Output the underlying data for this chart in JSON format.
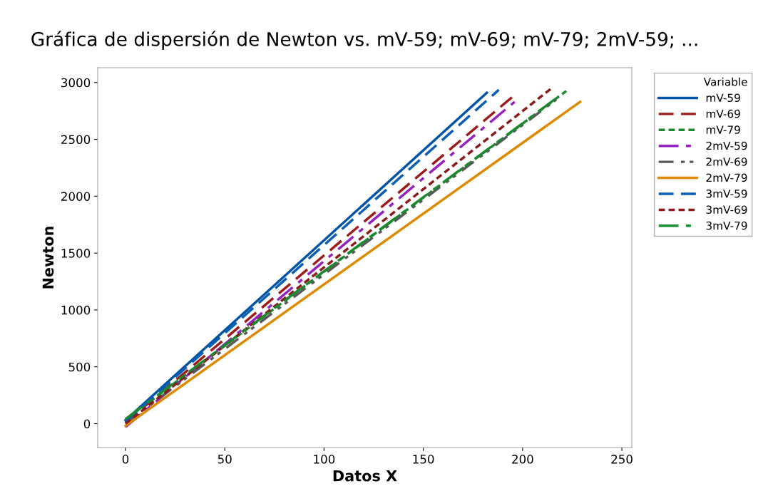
{
  "chart_data": {
    "type": "line",
    "title": "Gráfica de dispersión de Newton vs. mV-59; mV-69; mV-79; 2mV-59; ...",
    "xlabel": "Datos X",
    "ylabel": "Newton",
    "legend_title": "Variable",
    "legend": "right",
    "xlim": [
      -14,
      255
    ],
    "ylim": [
      -210,
      3130
    ],
    "xticks": [
      0,
      50,
      100,
      150,
      200,
      250
    ],
    "yticks": [
      0,
      500,
      1000,
      1500,
      2000,
      2500,
      3000
    ],
    "grid": false,
    "series": [
      {
        "name": "mV-59",
        "color": "#0054a6",
        "line_style": "solid",
        "x": [
          0,
          182
        ],
        "values": [
          30,
          2910
        ]
      },
      {
        "name": "mV-69",
        "color": "#9e1b1b",
        "line_style": "dashed",
        "x": [
          0,
          196
        ],
        "values": [
          10,
          2890
        ]
      },
      {
        "name": "mV-79",
        "color": "#1a8a2e",
        "line_style": "dotted",
        "x": [
          0,
          222
        ],
        "values": [
          35,
          2925
        ]
      },
      {
        "name": "2mV-59",
        "color": "#9521c4",
        "line_style": "dashdot",
        "x": [
          0,
          196
        ],
        "values": [
          -30,
          2830
        ]
      },
      {
        "name": "2mV-69",
        "color": "#595959",
        "line_style": "dashdotdot",
        "x": [
          0,
          217
        ],
        "values": [
          0,
          2850
        ]
      },
      {
        "name": "2mV-79",
        "color": "#dd8a00",
        "line_style": "solid",
        "x": [
          0,
          229
        ],
        "values": [
          -20,
          2830
        ]
      },
      {
        "name": "3mV-59",
        "color": "#0a5fb4",
        "line_style": "dashed",
        "x": [
          0,
          188
        ],
        "values": [
          20,
          2935
        ]
      },
      {
        "name": "3mV-69",
        "color": "#8b1a1a",
        "line_style": "dotted",
        "x": [
          0,
          215
        ],
        "values": [
          0,
          2955
        ]
      },
      {
        "name": "3mV-79",
        "color": "#1a8a2e",
        "line_style": "dashdot",
        "x": [
          0,
          218
        ],
        "values": [
          40,
          2875
        ]
      }
    ]
  }
}
